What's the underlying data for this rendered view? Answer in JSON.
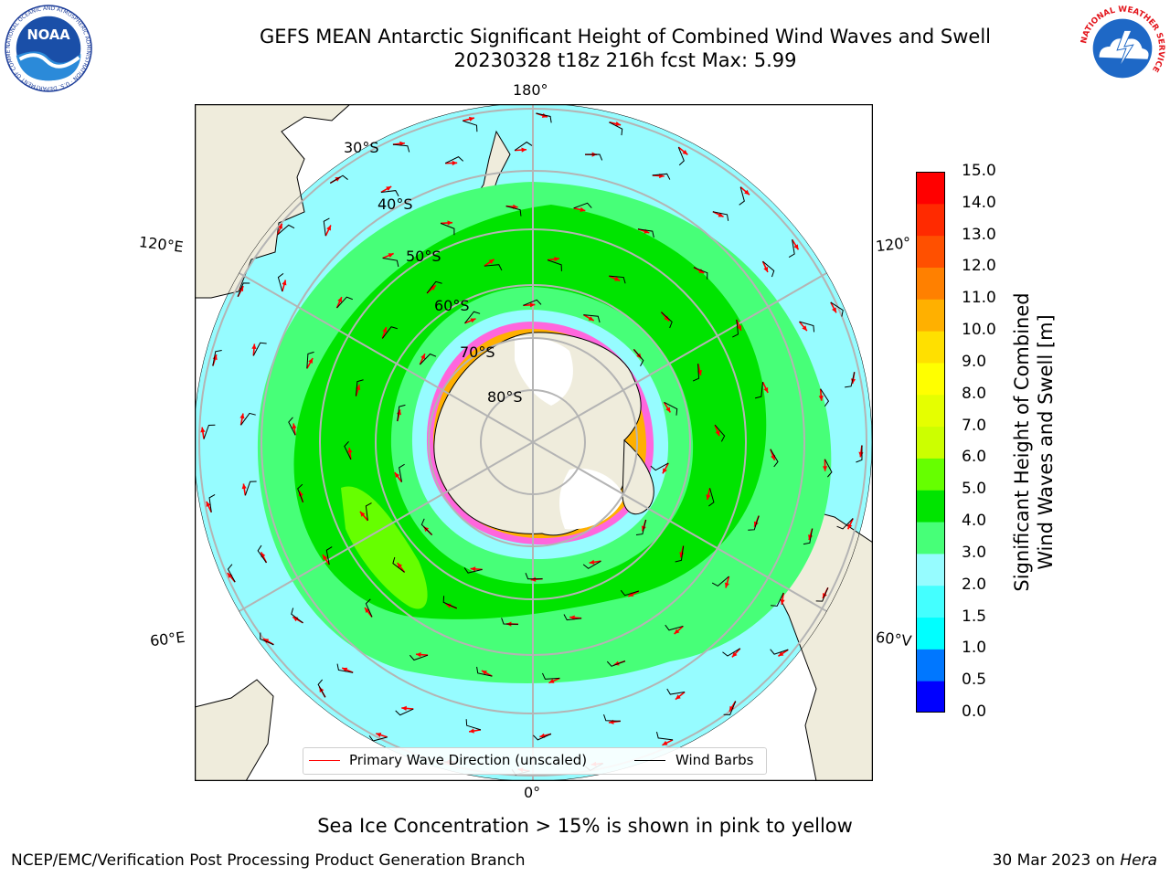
{
  "title": {
    "line1": "GEFS MEAN Antarctic Significant Height of Combined Wind Waves and Swell",
    "line2": "20230328 t18z 216h fcst   Max: 5.99"
  },
  "map": {
    "longitude_labels": {
      "top": "180°",
      "bottom": "0°",
      "left_upper": "120°E",
      "left_lower": "60°E",
      "right_upper": "120°",
      "right_lower": "60°V"
    },
    "latitude_labels": [
      "30°S",
      "40°S",
      "50°S",
      "60°S",
      "70°S",
      "80°S"
    ],
    "ocean_base_color": "#96fcff",
    "land_color": "#efecdc",
    "ice_edge_colors": [
      "#ff33cc",
      "#ffb000",
      "#ffff66"
    ]
  },
  "legend": {
    "primary_wave": "Primary Wave Direction (unscaled)",
    "wind_barbs": "Wind Barbs",
    "primary_wave_color": "#ff0000",
    "wind_barbs_color": "#000000"
  },
  "colorbar": {
    "title_line1": "Significant Height of Combined",
    "title_line2": "Wind Waves and Swell [m]",
    "ticks": [
      "0.0",
      "0.5",
      "1.0",
      "1.5",
      "2.0",
      "3.0",
      "4.0",
      "5.0",
      "6.0",
      "7.0",
      "8.0",
      "9.0",
      "10.0",
      "11.0",
      "12.0",
      "13.0",
      "14.0",
      "15.0"
    ],
    "colors": [
      "#0000ff",
      "#0077ff",
      "#00ffff",
      "#44ffff",
      "#96fcff",
      "#47ff78",
      "#00e400",
      "#66ff00",
      "#ccff00",
      "#e5ff00",
      "#ffff00",
      "#ffe000",
      "#ffb000",
      "#ff8000",
      "#ff5000",
      "#ff2a00",
      "#ff0000"
    ]
  },
  "note": "Sea Ice Concentration > 15% is shown in pink to yellow",
  "footer": {
    "left": "NCEP/EMC/Verification Post Processing Product Generation Branch",
    "right_prefix": "30 Mar 2023 on ",
    "right_host": "Hera"
  },
  "logos": {
    "noaa_text": "NOAA",
    "noaa_ring": "NATIONAL OCEANIC AND ATMOSPHERIC ADMINISTRATION · U.S. DEPARTMENT OF COMMERCE",
    "nws_text": "NATIONAL WEATHER SERVICE"
  }
}
